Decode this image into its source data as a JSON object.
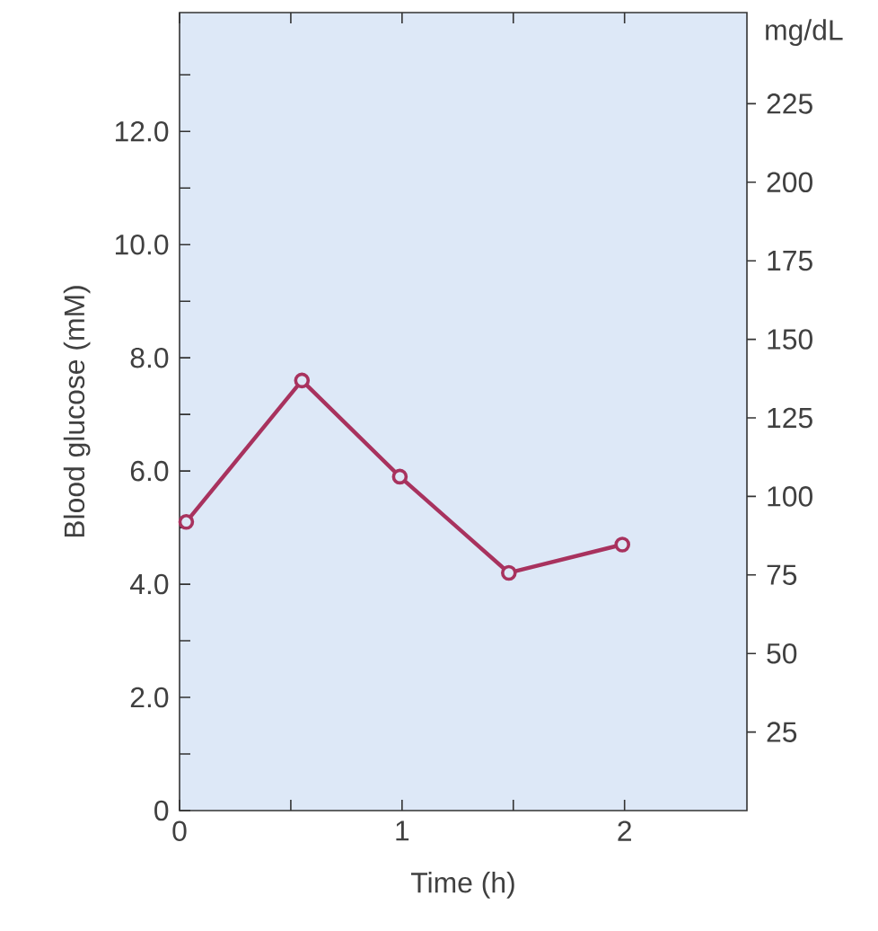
{
  "chart_data": {
    "type": "line",
    "xlabel": "Time (h)",
    "ylabel": "Blood glucose (mM)",
    "y2label": "mg/dL",
    "x": [
      0.03,
      0.55,
      0.99,
      1.48,
      1.99
    ],
    "series": [
      {
        "color": "#a8325e",
        "values": [
          5.1,
          7.6,
          5.9,
          4.2,
          4.7
        ]
      }
    ],
    "xlim": [
      0,
      2.55
    ],
    "xticks": [
      0,
      {
        "value": 0.5,
        "label": null
      },
      1,
      {
        "value": 1.5,
        "label": null
      },
      2
    ],
    "ylim": [
      0,
      14.1
    ],
    "yticks": [
      0,
      {
        "value": 1,
        "label": null
      },
      {
        "value": 2,
        "label": "2.0"
      },
      {
        "value": 3,
        "label": null
      },
      {
        "value": 4,
        "label": "4.0"
      },
      {
        "value": 5,
        "label": null
      },
      {
        "value": 6,
        "label": "6.0"
      },
      {
        "value": 7,
        "label": null
      },
      {
        "value": 8,
        "label": "8.0"
      },
      {
        "value": 9,
        "label": null
      },
      {
        "value": 10,
        "label": "10.0"
      },
      {
        "value": 11,
        "label": null
      },
      {
        "value": 12,
        "label": "12.0"
      },
      {
        "value": 13,
        "label": null
      }
    ],
    "y2lim": [
      0,
      254
    ],
    "y2ticks": [
      25,
      50,
      75,
      100,
      125,
      150,
      175,
      200,
      225
    ],
    "marker": "circle",
    "line_style": "solid",
    "grid": false
  }
}
